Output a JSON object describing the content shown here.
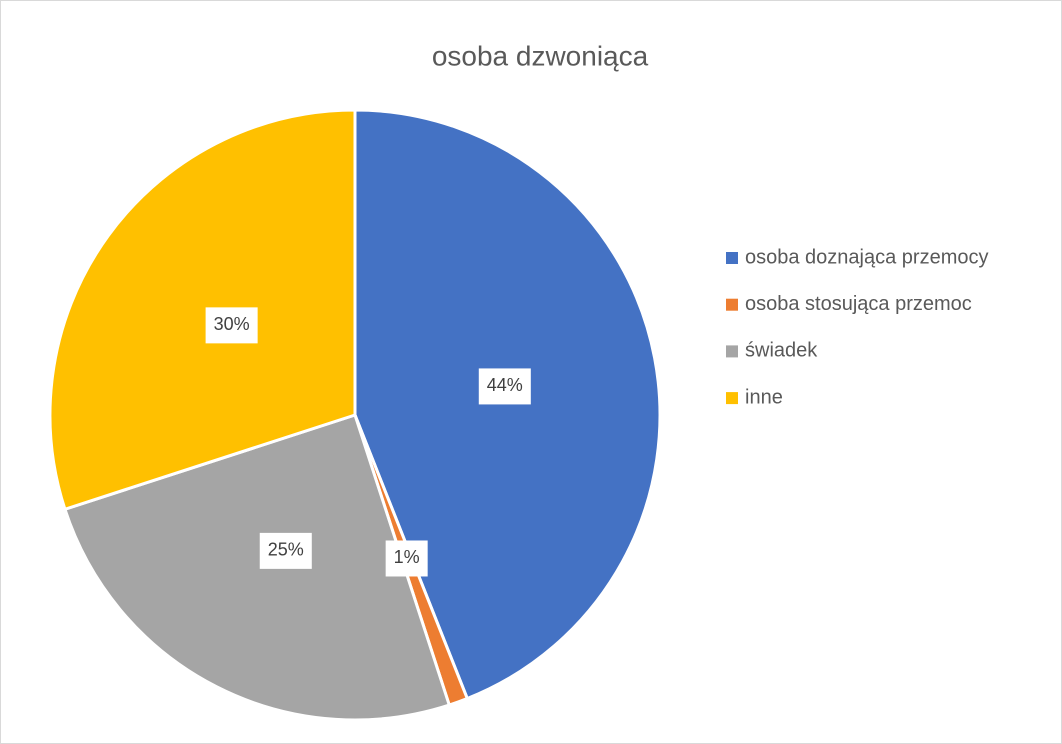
{
  "chart_data": {
    "type": "pie",
    "title": "osoba dzwoniąca",
    "categories": [
      "osoba doznająca przemocy",
      "osoba stosująca przemoc",
      "świadek",
      "inne"
    ],
    "values": [
      44,
      1,
      25,
      30
    ],
    "value_labels": [
      "44%",
      "1%",
      "25%",
      "30%"
    ],
    "colors": [
      "#4472c4",
      "#ed7d31",
      "#a5a5a5",
      "#ffc000"
    ],
    "legend": "right"
  }
}
